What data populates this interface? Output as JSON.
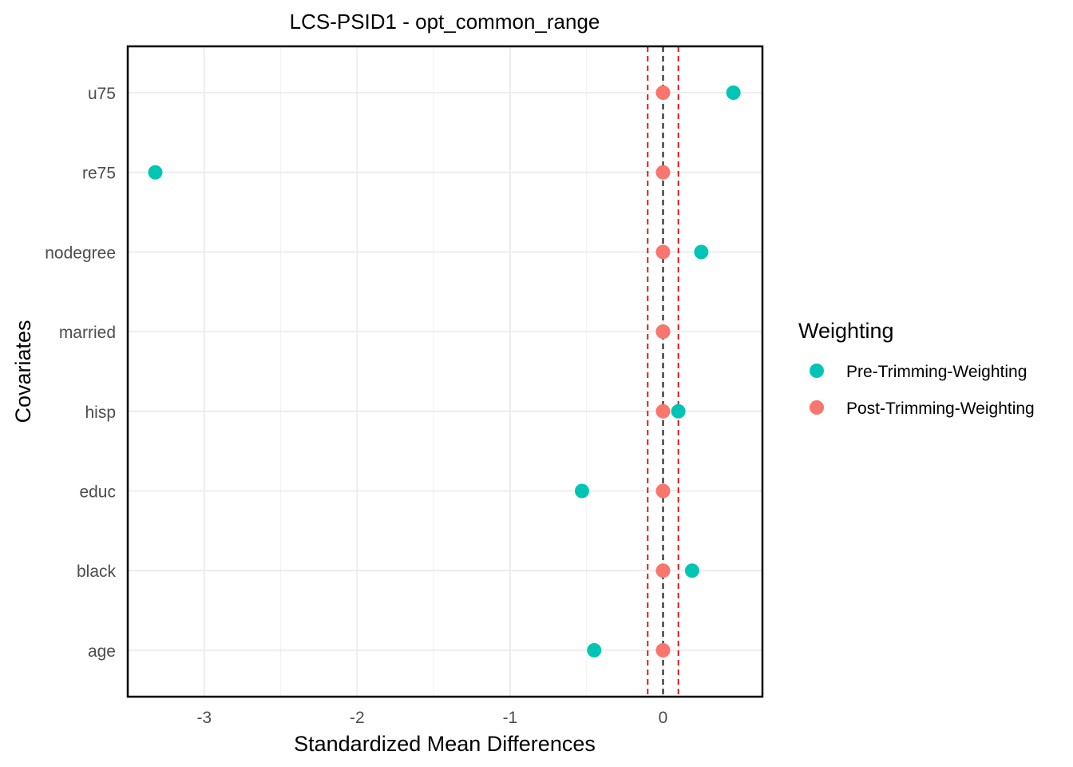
{
  "chart_data": {
    "type": "scatter",
    "title": "LCS-PSID1 - opt_common_range",
    "xlabel": "Standardized Mean Differences",
    "ylabel": "Covariates",
    "xlim": [
      -3.5,
      0.65
    ],
    "xticks": [
      -3,
      -2,
      -1,
      0
    ],
    "xtick_labels": [
      "-3",
      "-2",
      "-1",
      "0"
    ],
    "categories": [
      "age",
      "black",
      "educ",
      "hisp",
      "married",
      "nodegree",
      "re75",
      "u75"
    ],
    "series": [
      {
        "name": "Pre-Trimming-Weighting",
        "color": "#00C5B5",
        "values": [
          -0.45,
          0.19,
          -0.53,
          0.1,
          0.0,
          0.25,
          -3.32,
          0.46
        ]
      },
      {
        "name": "Post-Trimming-Weighting",
        "color": "#F8766D",
        "values": [
          0.0,
          0.0,
          0.0,
          0.0,
          0.0,
          0.0,
          0.0,
          0.0
        ]
      }
    ],
    "reference_lines": [
      {
        "x": 0,
        "color": "#000000",
        "style": "dashed"
      },
      {
        "x": -0.1,
        "color": "#E00000",
        "style": "dashed"
      },
      {
        "x": 0.1,
        "color": "#E00000",
        "style": "dashed"
      }
    ],
    "grid": true,
    "legend_position": "right",
    "legend_title": "Weighting"
  }
}
